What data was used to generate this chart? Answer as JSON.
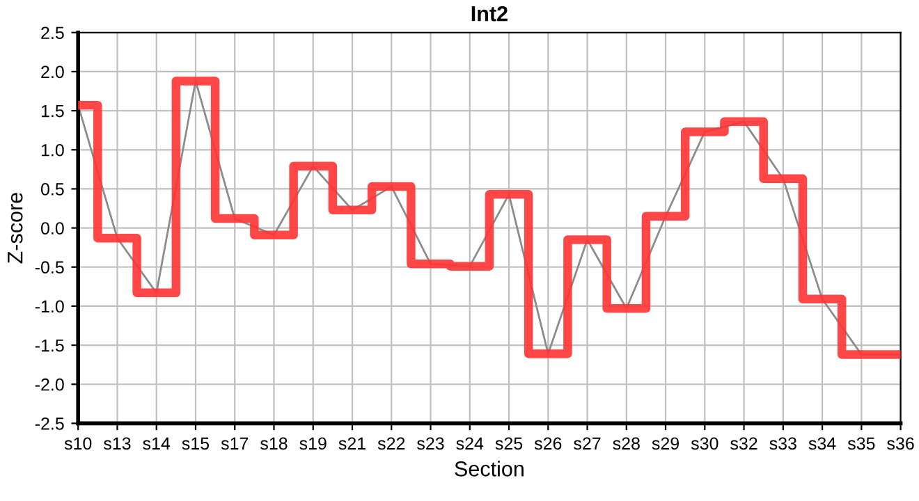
{
  "chart_data": {
    "type": "step",
    "title": "Int2",
    "xlabel": "Section",
    "ylabel": "Z-score",
    "categories": [
      "s10",
      "s13",
      "s14",
      "s15",
      "s17",
      "s18",
      "s19",
      "s21",
      "s22",
      "s23",
      "s24",
      "s25",
      "s26",
      "s27",
      "s28",
      "s29",
      "s30",
      "s32",
      "s33",
      "s34",
      "s35",
      "s36"
    ],
    "series": [
      {
        "type": "line",
        "color": "#8c8c8c",
        "values": [
          1.57,
          -0.13,
          -0.83,
          1.88,
          0.12,
          -0.09,
          0.79,
          0.23,
          0.53,
          -0.46,
          -0.49,
          0.43,
          -1.61,
          -0.15,
          -1.03,
          0.15,
          1.23,
          1.36,
          0.63,
          -0.91,
          -1.62,
          -1.62
        ]
      },
      {
        "color": "#ff3333",
        "values": [
          1.57,
          -0.13,
          -0.83,
          1.88,
          0.12,
          -0.09,
          0.79,
          0.23,
          0.53,
          -0.46,
          -0.49,
          0.43,
          -1.61,
          -0.15,
          -1.03,
          0.15,
          1.23,
          1.36,
          0.63,
          -0.91,
          -1.62,
          -1.62
        ]
      }
    ],
    "ylim": [
      -2.5,
      2.5
    ],
    "yticks": [
      {
        "value": -2.5,
        "label": "-2.5"
      },
      {
        "value": -2.0,
        "label": "-2.0"
      },
      {
        "value": -1.5,
        "label": "-1.5"
      },
      {
        "value": -1.0,
        "label": "-1.0"
      },
      {
        "value": -0.5,
        "label": "-0.5"
      },
      {
        "value": 0,
        "label": "0.0"
      },
      {
        "value": 0.5,
        "label": "0.5"
      },
      {
        "value": 1.0,
        "label": "1.0"
      },
      {
        "value": 1.5,
        "label": "1.5"
      },
      {
        "value": 2.0,
        "label": "2.0"
      },
      {
        "value": 2.5,
        "label": "2.5"
      }
    ],
    "grid": true,
    "legend": false
  }
}
